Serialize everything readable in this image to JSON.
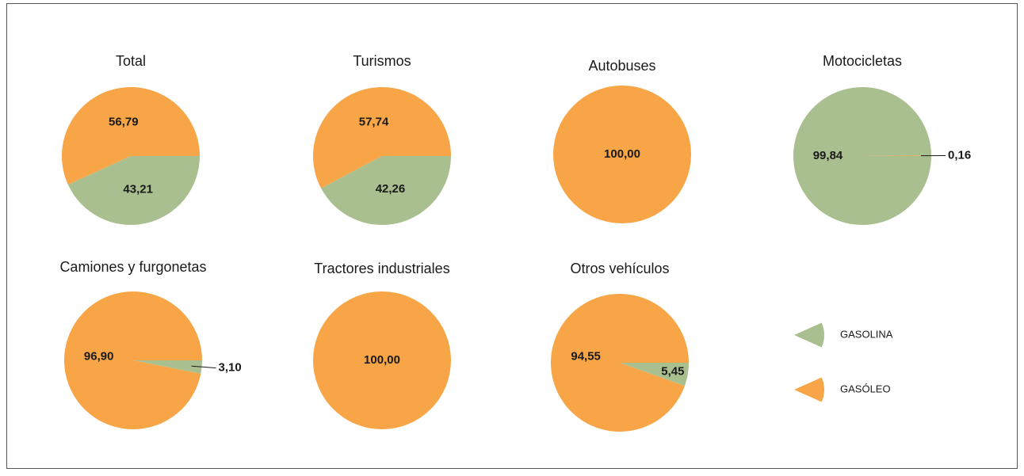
{
  "chart_data": [
    {
      "type": "pie",
      "title": "Total",
      "categories": [
        "GASOLINA",
        "GASÓLEO"
      ],
      "values": [
        43.21,
        56.79
      ],
      "value_labels": [
        "43,21",
        "56,79"
      ],
      "colors": [
        "#a9bf8f",
        "#f7a546"
      ]
    },
    {
      "type": "pie",
      "title": "Turismos",
      "categories": [
        "GASOLINA",
        "GASÓLEO"
      ],
      "values": [
        42.26,
        57.74
      ],
      "value_labels": [
        "42,26",
        "57,74"
      ],
      "colors": [
        "#a9bf8f",
        "#f7a546"
      ]
    },
    {
      "type": "pie",
      "title": "Autobuses",
      "categories": [
        "GASOLINA",
        "GASÓLEO"
      ],
      "values": [
        0,
        100
      ],
      "value_labels": [
        null,
        "100,00"
      ],
      "colors": [
        "#a9bf8f",
        "#f7a546"
      ]
    },
    {
      "type": "pie",
      "title": "Motocicletas",
      "categories": [
        "GASOLINA",
        "GASÓLEO"
      ],
      "values": [
        99.84,
        0.16
      ],
      "value_labels": [
        "99,84",
        "0,16"
      ],
      "colors": [
        "#a9bf8f",
        "#f7a546"
      ]
    },
    {
      "type": "pie",
      "title": "Camiones y furgonetas",
      "categories": [
        "GASOLINA",
        "GASÓLEO"
      ],
      "values": [
        3.1,
        96.9
      ],
      "value_labels": [
        "3,10",
        "96,90"
      ],
      "colors": [
        "#a9bf8f",
        "#f7a546"
      ]
    },
    {
      "type": "pie",
      "title": "Tractores industriales",
      "categories": [
        "GASOLINA",
        "GASÓLEO"
      ],
      "values": [
        0,
        100
      ],
      "value_labels": [
        null,
        "100,00"
      ],
      "colors": [
        "#a9bf8f",
        "#f7a546"
      ]
    },
    {
      "type": "pie",
      "title": "Otros vehículos",
      "categories": [
        "GASOLINA",
        "GASÓLEO"
      ],
      "values": [
        5.45,
        94.55
      ],
      "value_labels": [
        "5,45",
        "94,55"
      ],
      "colors": [
        "#a9bf8f",
        "#f7a546"
      ]
    }
  ]
}
